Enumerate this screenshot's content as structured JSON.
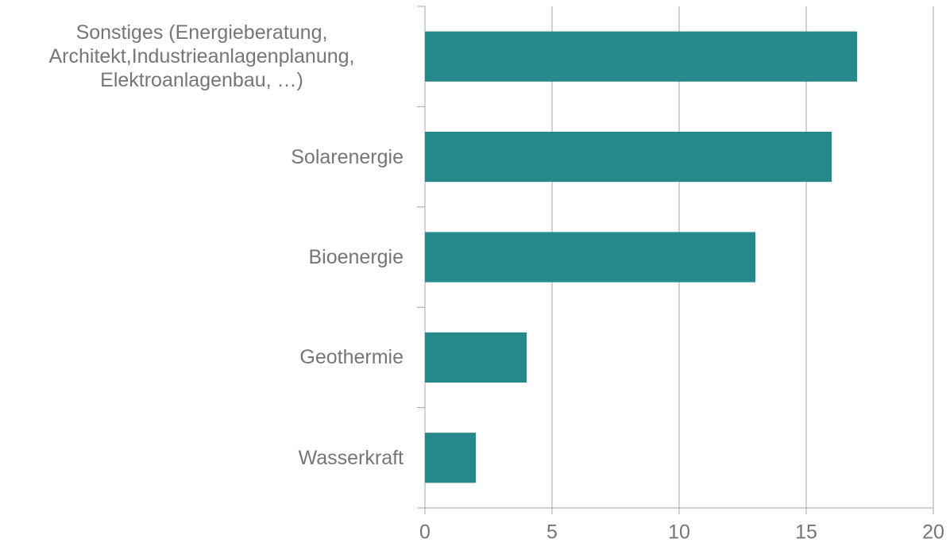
{
  "chart_data": {
    "type": "barh",
    "categories": [
      "Sonstiges (Energieberatung, Architekt,Industrieanlagenplanung, Elektroanlagenbau, …)",
      "Solarenergie",
      "Bioenergie",
      "Geothermie",
      "Wasserkraft"
    ],
    "values": [
      17,
      16,
      13,
      4,
      2
    ],
    "color": "#268a8c",
    "xlim": [
      0,
      20
    ],
    "xticks": [
      0,
      5,
      10,
      15,
      20
    ],
    "grid": true
  }
}
